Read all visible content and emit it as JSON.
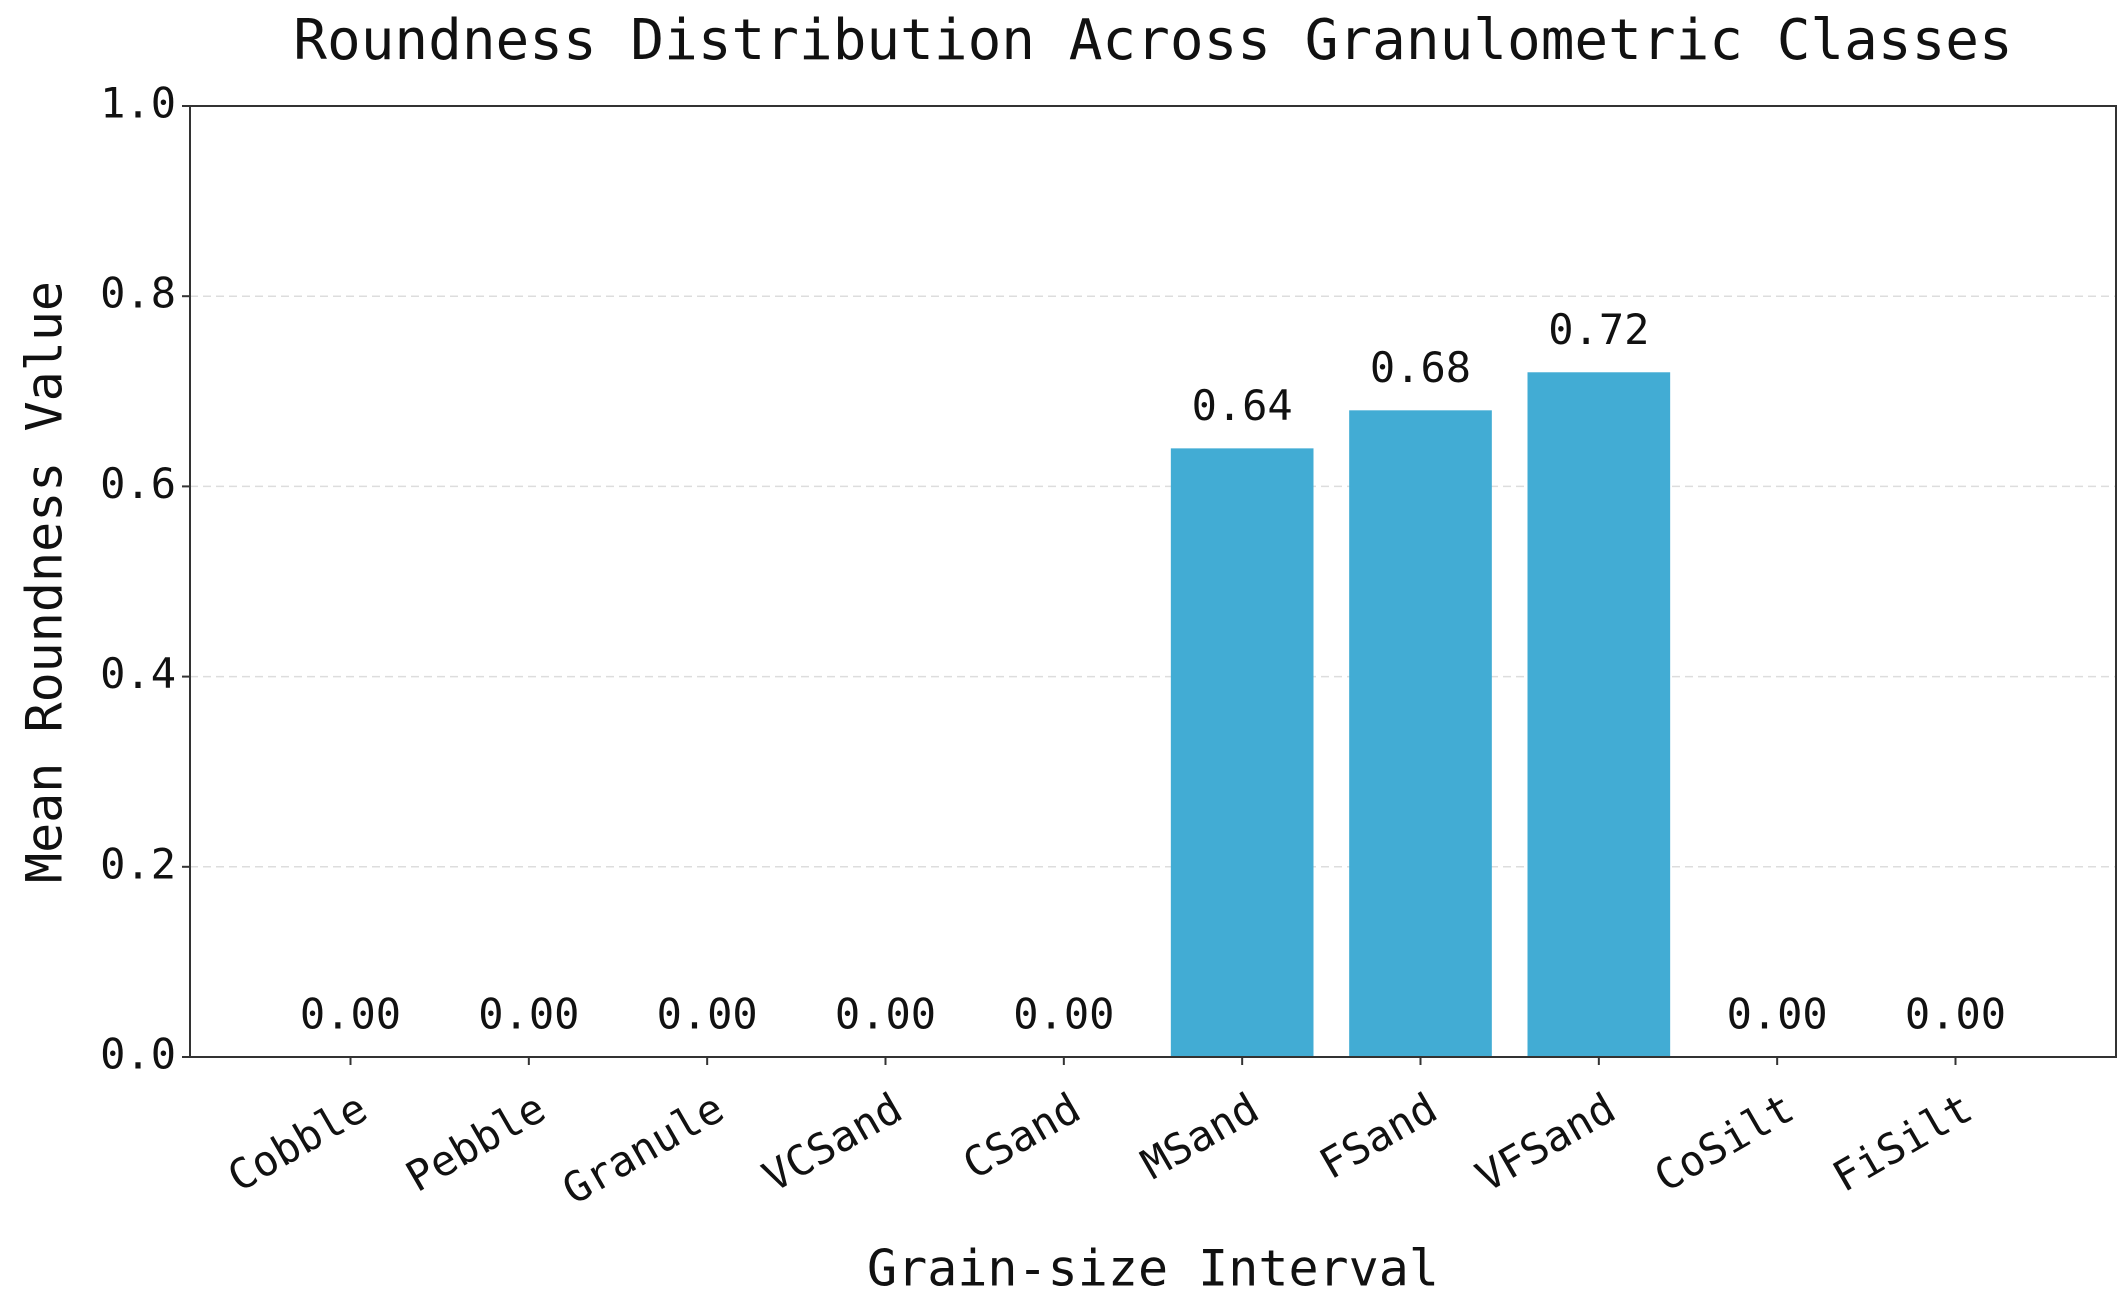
{
  "chart_data": {
    "type": "bar",
    "title": "Roundness Distribution Across Granulometric Classes",
    "x_label": "Grain-size Interval",
    "y_label": "Mean Roundness Value",
    "categories": [
      "Cobble",
      "Pebble",
      "Granule",
      "VCSand",
      "CSand",
      "MSand",
      "FSand",
      "VFSand",
      "CoSilt",
      "FiSilt"
    ],
    "values": [
      0,
      0,
      0,
      0,
      0,
      0.64,
      0.68,
      0.72,
      0,
      0
    ],
    "value_labels": [
      "0.00",
      "0.00",
      "0.00",
      "0.00",
      "0.00",
      "0.64",
      "0.68",
      "0.72",
      "0.00",
      "0.00"
    ],
    "color": "#42acd4",
    "ylim": [
      0,
      1
    ],
    "yticks": [
      {
        "value": 0,
        "label": "0.0"
      },
      0.2,
      0.4,
      0.6,
      0.8,
      {
        "value": 1,
        "label": "1.0"
      }
    ],
    "grid": true
  }
}
